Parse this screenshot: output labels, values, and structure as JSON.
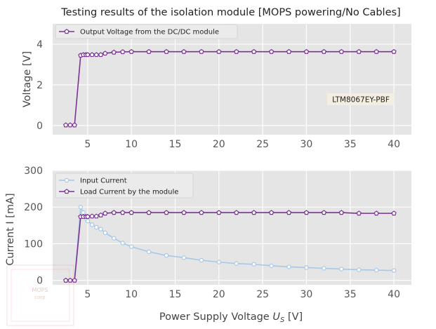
{
  "figure_title": "Testing results  of the isolation module [MOPS powering/No Cables]",
  "colors": {
    "purple": "#7b3294",
    "light_blue": "#a6c8e8",
    "panel_bg": "#e5e5e5",
    "grid": "#ffffff",
    "tick_text": "#555555",
    "annotation_bg": "#f5eedf"
  },
  "watermark_text": [
    "MOPS",
    "corp"
  ],
  "chart_data": [
    {
      "type": "line",
      "ylabel": "Voltage [V]",
      "xlabel": "",
      "xlim": [
        1.0,
        42.0
      ],
      "ylim": [
        -0.45,
        5.0
      ],
      "xticks": [
        "5",
        "10",
        "15",
        "20",
        "25",
        "30",
        "35",
        "40"
      ],
      "yticks": [
        "0",
        "2",
        "4"
      ],
      "grid": true,
      "legend_position": "top-left",
      "annotation": "LTM8067EY-PBF",
      "series": [
        {
          "name": "Output Voltage from the DC/DC module",
          "color": "#7b3294",
          "marker": "pentagon",
          "x": [
            2.5,
            3.0,
            3.5,
            4.2,
            4.5,
            4.8,
            5.0,
            5.5,
            6.0,
            6.5,
            7.0,
            8.0,
            9.0,
            10.0,
            12.0,
            14.0,
            16.0,
            18.0,
            20.0,
            22.0,
            24.0,
            26.0,
            28.0,
            30.0,
            32.0,
            34.0,
            36.0,
            38.0,
            40.0
          ],
          "y": [
            0.02,
            0.02,
            0.02,
            3.45,
            3.48,
            3.48,
            3.48,
            3.48,
            3.48,
            3.48,
            3.55,
            3.6,
            3.62,
            3.63,
            3.63,
            3.63,
            3.63,
            3.63,
            3.63,
            3.63,
            3.63,
            3.63,
            3.63,
            3.63,
            3.63,
            3.63,
            3.63,
            3.63,
            3.63
          ]
        }
      ]
    },
    {
      "type": "line",
      "ylabel": "Current I [mA]",
      "xlabel": "Power Supply Voltage U_S [V]",
      "xlim": [
        1.0,
        42.0
      ],
      "ylim": [
        -12,
        300
      ],
      "xticks": [
        "5",
        "10",
        "15",
        "20",
        "25",
        "30",
        "35",
        "40"
      ],
      "yticks": [
        "0",
        "100",
        "200",
        "300"
      ],
      "grid": true,
      "legend_position": "top-left",
      "series": [
        {
          "name": "Input Current",
          "color": "#a6c8e8",
          "marker": "circle",
          "x": [
            2.5,
            3.0,
            3.5,
            4.2,
            4.5,
            4.8,
            5.0,
            5.5,
            6.0,
            6.5,
            7.0,
            8.0,
            9.0,
            10.0,
            12.0,
            14.0,
            16.0,
            18.0,
            20.0,
            22.0,
            24.0,
            26.0,
            28.0,
            30.0,
            32.0,
            34.0,
            36.0,
            38.0,
            40.0
          ],
          "y": [
            0,
            0,
            0,
            200,
            185,
            170,
            162,
            152,
            145,
            140,
            130,
            115,
            102,
            92,
            78,
            68,
            62,
            55,
            50,
            46,
            44,
            40,
            37,
            35,
            33,
            31,
            29,
            28,
            27
          ]
        },
        {
          "name": "Load Current by the module",
          "color": "#7b3294",
          "marker": "pentagon",
          "x": [
            2.5,
            3.0,
            3.5,
            4.2,
            4.5,
            4.8,
            5.0,
            5.5,
            6.0,
            6.5,
            7.0,
            8.0,
            9.0,
            10.0,
            12.0,
            14.0,
            16.0,
            18.0,
            20.0,
            22.0,
            24.0,
            26.0,
            28.0,
            30.0,
            32.0,
            34.0,
            36.0,
            38.0,
            40.0
          ],
          "y": [
            0,
            0,
            0,
            174,
            174,
            174,
            174,
            175,
            175,
            178,
            183,
            185,
            185,
            185,
            185,
            185,
            185,
            185,
            185,
            185,
            185,
            185,
            185,
            185,
            185,
            185,
            183,
            183,
            183
          ]
        }
      ]
    }
  ]
}
